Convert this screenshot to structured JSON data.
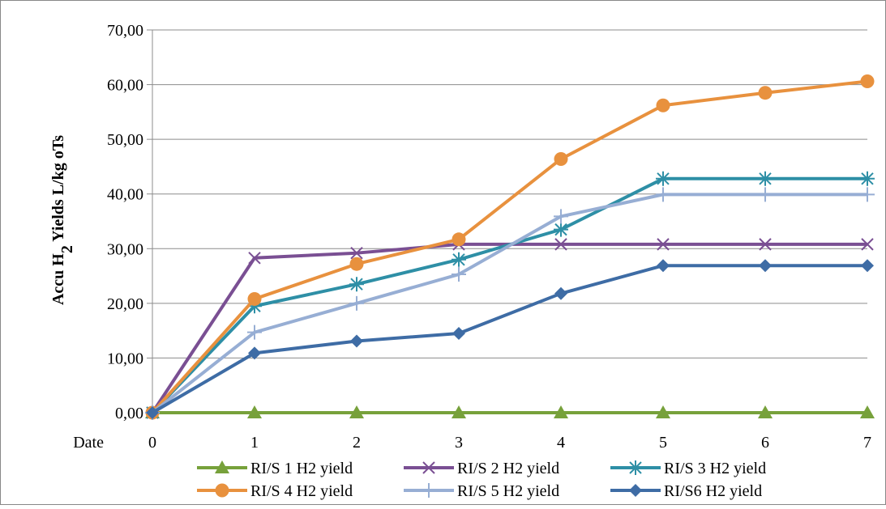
{
  "chart_data": {
    "type": "line",
    "title": "",
    "xlabel": "Date",
    "ylabel": "Accu H₂ Yields L/kg oTs",
    "ylabel_parts": {
      "prefix": "Accu H",
      "subscript": "2",
      "suffix": " Yields L/kg oTs"
    },
    "x": [
      0,
      1,
      2,
      3,
      4,
      5,
      6,
      7
    ],
    "x_tick_labels": [
      "0",
      "1",
      "2",
      "3",
      "4",
      "5",
      "6",
      "7"
    ],
    "ylim": [
      0,
      70
    ],
    "y_ticks": [
      0,
      10,
      20,
      30,
      40,
      50,
      60,
      70
    ],
    "y_tick_labels": [
      "0,00",
      "10,00",
      "20,00",
      "30,00",
      "40,00",
      "50,00",
      "60,00",
      "70,00"
    ],
    "grid": "horizontal",
    "legend_position": "bottom",
    "series": [
      {
        "name": "RI/S 1 H2 yield",
        "color": "#77A13B",
        "marker": "triangle",
        "values": [
          0,
          0,
          0,
          0,
          0,
          0,
          0,
          0
        ]
      },
      {
        "name": "RI/S 2 H2 yield",
        "color": "#7A4F93",
        "marker": "x",
        "values": [
          0,
          28.3,
          29.2,
          30.8,
          30.8,
          30.8,
          30.8,
          30.8
        ]
      },
      {
        "name": "RI/S 3 H2 yield",
        "color": "#2E8FA6",
        "marker": "asterisk",
        "values": [
          0,
          19.5,
          23.5,
          28.0,
          33.5,
          42.8,
          42.8,
          42.8
        ]
      },
      {
        "name": "RI/S 4 H2 yield",
        "color": "#E8913E",
        "marker": "circle",
        "values": [
          0,
          20.8,
          27.2,
          31.7,
          46.4,
          56.2,
          58.5,
          60.6
        ]
      },
      {
        "name": "RI/S 5 H2 yield",
        "color": "#97AED4",
        "marker": "plus",
        "values": [
          0,
          14.7,
          20.0,
          25.3,
          35.9,
          39.9,
          39.9,
          39.9
        ]
      },
      {
        "name": "RI/S6 H2 yield",
        "color": "#3E6CA5",
        "marker": "diamond",
        "values": [
          0,
          10.9,
          13.1,
          14.5,
          21.8,
          26.9,
          26.9,
          26.9
        ]
      }
    ]
  }
}
